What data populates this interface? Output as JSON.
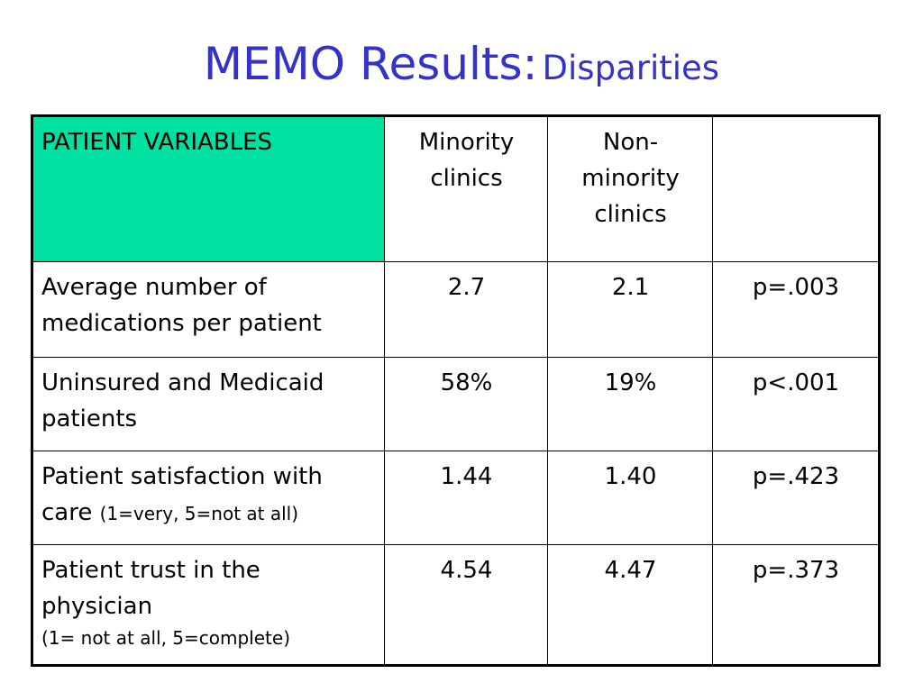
{
  "slide": {
    "title_main": "MEMO Results:",
    "title_sub": "Disparities"
  },
  "table": {
    "header": {
      "variables": "PATIENT VARIABLES",
      "minority_line1": "Minority",
      "minority_line2": "clinics",
      "nonminority_line1": "Non-",
      "nonminority_line2": "minority",
      "nonminority_line3": "clinics",
      "pvalue": ""
    },
    "rows": [
      {
        "label_line1": "Average number of",
        "label_line2": "medications per patient",
        "minority": "2.7",
        "nonminority": "2.1",
        "pvalue": "p=.003"
      },
      {
        "label_line1": "Uninsured and Medicaid",
        "label_line2": "patients",
        "minority": "58%",
        "nonminority": "19%",
        "pvalue": "p<.001"
      },
      {
        "label_line1": "Patient satisfaction with",
        "label_line2": "care",
        "note": "(1=very, 5=not at all)",
        "minority": "1.44",
        "nonminority": "1.40",
        "pvalue": "p=.423"
      },
      {
        "label_line1": "Patient trust in the",
        "label_line2": "physician",
        "note": "(1= not at all, 5=complete)",
        "minority": "4.54",
        "nonminority": "4.47",
        "pvalue": "p=.373"
      }
    ]
  },
  "colors": {
    "title": "#3333cc",
    "header_fill": "#00e0a0",
    "minority_text": "#ee1111",
    "nonminority_text": "#3333cc"
  }
}
